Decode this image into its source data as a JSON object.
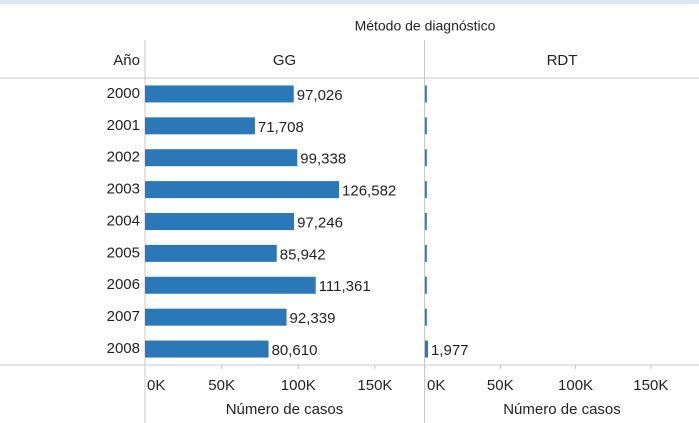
{
  "chart_data": {
    "type": "bar",
    "title": "Método de diagnóstico",
    "row_header": "Año",
    "x_label": "Número de casos",
    "categories": [
      "2000",
      "2001",
      "2002",
      "2003",
      "2004",
      "2005",
      "2006",
      "2007",
      "2008"
    ],
    "series": [
      {
        "name": "GG",
        "color": "#2a78b8",
        "values": [
          97026,
          71708,
          99338,
          126582,
          97246,
          85942,
          111361,
          92339,
          80610
        ],
        "value_labels": [
          "97,026",
          "71,708",
          "99,338",
          "126,582",
          "97,246",
          "85,942",
          "111,361",
          "92,339",
          "80,610"
        ]
      },
      {
        "name": "RDT",
        "color": "#2a78b8",
        "values": [
          1200,
          1200,
          1200,
          1200,
          1200,
          1200,
          1200,
          1200,
          1977
        ],
        "value_labels": [
          null,
          null,
          null,
          null,
          null,
          null,
          null,
          null,
          "1,977"
        ]
      }
    ],
    "xlim": [
      0,
      182000
    ],
    "xticks": [
      {
        "value": 0,
        "label": "0K"
      },
      {
        "value": 50000,
        "label": "50K"
      },
      {
        "value": 100000,
        "label": "100K"
      },
      {
        "value": 150000,
        "label": "150K"
      }
    ]
  }
}
